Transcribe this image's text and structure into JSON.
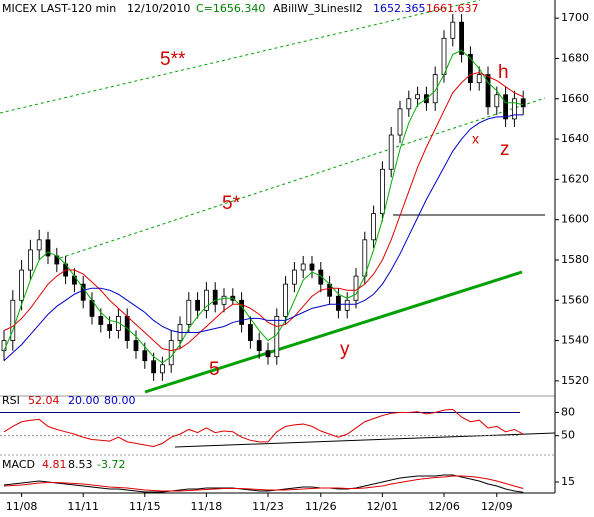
{
  "chart_data": [
    {
      "type": "candlestick",
      "header": [
        {
          "text": "MICEX LAST-120 min",
          "color": "#000000"
        },
        {
          "text": "12/10/2010",
          "color": "#000000"
        },
        {
          "text": "C=1656.340",
          "color": "#008000"
        },
        {
          "text": "ABillW_3LinesII2",
          "color": "#000000"
        },
        {
          "text": "1652.365",
          "color": "#0000c0"
        },
        {
          "text": "1661.637",
          "color": "#d00000"
        }
      ],
      "annotations": [
        {
          "text": "5**",
          "color": "#d00000"
        },
        {
          "text": "5*",
          "color": "#d00000"
        },
        {
          "text": "h",
          "color": "#d00000"
        },
        {
          "text": "x",
          "color": "#d00000"
        },
        {
          "text": "z",
          "color": "#d00000"
        },
        {
          "text": "y",
          "color": "#d00000"
        },
        {
          "text": "5",
          "color": "#d00000"
        }
      ],
      "categories": [
        null,
        null,
        "11/08",
        null,
        null,
        null,
        null,
        null,
        null,
        "11/11",
        null,
        null,
        null,
        null,
        null,
        null,
        "11/15",
        null,
        null,
        null,
        null,
        null,
        null,
        "11/18",
        null,
        null,
        null,
        null,
        null,
        null,
        "11/23",
        null,
        null,
        null,
        null,
        null,
        "11/26",
        null,
        null,
        null,
        null,
        null,
        null,
        "12/01",
        null,
        null,
        null,
        null,
        null,
        null,
        "12/06",
        null,
        null,
        null,
        null,
        null,
        "12/09",
        null,
        null,
        null
      ],
      "open": [
        1535,
        1540,
        1560,
        1575,
        1585,
        1590,
        1582,
        1578,
        1572,
        1568,
        1560,
        1552,
        1548,
        1545,
        1552,
        1540,
        1535,
        1530,
        1524,
        1528,
        1540,
        1548,
        1560,
        1555,
        1565,
        1558,
        1562,
        1560,
        1548,
        1540,
        1535,
        1532,
        1552,
        1568,
        1575,
        1578,
        1575,
        1568,
        1562,
        1555,
        1560,
        1572,
        1590,
        1603,
        1625,
        1642,
        1655,
        1660,
        1662,
        1658,
        1672,
        1690,
        1698,
        1682,
        1668,
        1672,
        1656,
        1662,
        1650,
        1660
      ],
      "high": [
        1545,
        1565,
        1580,
        1590,
        1595,
        1594,
        1586,
        1582,
        1576,
        1572,
        1564,
        1556,
        1552,
        1556,
        1556,
        1545,
        1539,
        1534,
        1532,
        1545,
        1552,
        1564,
        1564,
        1569,
        1569,
        1566,
        1566,
        1564,
        1552,
        1544,
        1539,
        1556,
        1572,
        1579,
        1582,
        1582,
        1579,
        1572,
        1566,
        1564,
        1576,
        1594,
        1607,
        1629,
        1646,
        1659,
        1664,
        1666,
        1666,
        1676,
        1694,
        1702,
        1702,
        1686,
        1676,
        1676,
        1666,
        1666,
        1664,
        1664
      ],
      "low": [
        1530,
        1535,
        1555,
        1570,
        1580,
        1578,
        1574,
        1568,
        1564,
        1556,
        1548,
        1544,
        1541,
        1541,
        1536,
        1531,
        1526,
        1520,
        1520,
        1524,
        1536,
        1544,
        1551,
        1551,
        1554,
        1554,
        1558,
        1544,
        1536,
        1531,
        1528,
        1528,
        1548,
        1564,
        1571,
        1571,
        1564,
        1558,
        1551,
        1551,
        1556,
        1568,
        1586,
        1599,
        1621,
        1638,
        1651,
        1656,
        1654,
        1654,
        1668,
        1686,
        1678,
        1664,
        1664,
        1652,
        1652,
        1646,
        1646,
        1652
      ],
      "close": [
        1540,
        1560,
        1575,
        1585,
        1590,
        1582,
        1578,
        1572,
        1568,
        1560,
        1552,
        1548,
        1545,
        1552,
        1540,
        1535,
        1530,
        1524,
        1528,
        1540,
        1548,
        1560,
        1555,
        1565,
        1558,
        1562,
        1560,
        1548,
        1540,
        1535,
        1532,
        1552,
        1568,
        1575,
        1578,
        1575,
        1568,
        1562,
        1555,
        1560,
        1572,
        1590,
        1603,
        1625,
        1642,
        1655,
        1660,
        1662,
        1658,
        1672,
        1690,
        1698,
        1682,
        1668,
        1672,
        1656,
        1662,
        1650,
        1660,
        1656
      ],
      "series": [
        {
          "color": "#00b000",
          "values": [
            1535,
            1545,
            1558,
            1570,
            1580,
            1584,
            1582,
            1578,
            1572,
            1566,
            1560,
            1554,
            1550,
            1549,
            1546,
            1542,
            1537,
            1532,
            1529,
            1532,
            1538,
            1546,
            1552,
            1557,
            1560,
            1561,
            1561,
            1557,
            1551,
            1545,
            1540,
            1543,
            1550,
            1560,
            1570,
            1574,
            1572,
            1568,
            1563,
            1561,
            1563,
            1572,
            1585,
            1600,
            1618,
            1635,
            1648,
            1657,
            1660,
            1664,
            1672,
            1682,
            1684,
            1680,
            1675,
            1668,
            1664,
            1658,
            1658,
            1657
          ]
        },
        {
          "color": "#e00000",
          "values": [
            1545,
            1547,
            1551,
            1556,
            1562,
            1568,
            1572,
            1575,
            1575,
            1573,
            1569,
            1565,
            1560,
            1556,
            1552,
            1548,
            1544,
            1540,
            1536,
            1535,
            1536,
            1539,
            1543,
            1547,
            1551,
            1555,
            1558,
            1558,
            1556,
            1553,
            1549,
            1547,
            1548,
            1552,
            1557,
            1562,
            1565,
            1566,
            1566,
            1565,
            1565,
            1568,
            1573,
            1580,
            1590,
            1602,
            1614,
            1626,
            1636,
            1645,
            1654,
            1663,
            1668,
            1672,
            1673,
            1671,
            1669,
            1666,
            1663,
            1661
          ]
        },
        {
          "color": "#0000cc",
          "values": [
            1530,
            1534,
            1538,
            1543,
            1548,
            1553,
            1557,
            1560,
            1563,
            1565,
            1566,
            1566,
            1565,
            1563,
            1560,
            1557,
            1554,
            1550,
            1547,
            1545,
            1544,
            1544,
            1544,
            1545,
            1546,
            1547,
            1549,
            1550,
            1551,
            1551,
            1550,
            1550,
            1550,
            1552,
            1554,
            1556,
            1557,
            1558,
            1558,
            1558,
            1558,
            1560,
            1563,
            1568,
            1575,
            1583,
            1592,
            1601,
            1610,
            1618,
            1626,
            1634,
            1640,
            1645,
            1648,
            1650,
            1651,
            1651,
            1652,
            1652
          ]
        }
      ],
      "ylim": [
        1513,
        1709
      ],
      "yticks": [
        1520,
        1540,
        1560,
        1580,
        1600,
        1620,
        1640,
        1660,
        1680,
        1700
      ]
    },
    {
      "type": "line",
      "header": [
        {
          "text": "RSI",
          "color": "#000000"
        },
        {
          "text": "52.04",
          "color": "#d00000"
        },
        {
          "text": "20.00",
          "color": "#0000c0"
        },
        {
          "text": "80.00",
          "color": "#0000c0"
        }
      ],
      "series": [
        {
          "color": "#e00000",
          "values": [
            55,
            62,
            68,
            70,
            71,
            62,
            58,
            55,
            52,
            48,
            45,
            44,
            43,
            48,
            42,
            40,
            38,
            36,
            40,
            48,
            52,
            58,
            54,
            60,
            54,
            56,
            55,
            48,
            44,
            42,
            42,
            55,
            62,
            64,
            65,
            62,
            56,
            52,
            48,
            52,
            60,
            68,
            72,
            76,
            79,
            80,
            80,
            81,
            78,
            80,
            83,
            84,
            74,
            68,
            70,
            60,
            62,
            55,
            58,
            52
          ]
        }
      ],
      "ylim": [
        25,
        100
      ],
      "yticks": [
        50,
        80
      ]
    },
    {
      "type": "line",
      "header": [
        {
          "text": "MACD",
          "color": "#000000"
        },
        {
          "text": "4.81",
          "color": "#d00000"
        },
        {
          "text": "8.53",
          "color": "#000000"
        },
        {
          "text": "-3.72",
          "color": "#008000"
        }
      ],
      "series": [
        {
          "color": "#000000",
          "values": [
            12,
            13,
            14,
            15,
            16,
            15,
            14,
            13,
            12,
            11,
            10,
            9,
            8,
            8,
            7,
            6,
            5,
            5,
            5,
            6,
            7,
            8,
            8,
            9,
            9,
            9,
            9,
            8,
            7,
            6,
            6,
            7,
            8,
            9,
            10,
            10,
            9,
            9,
            8,
            8,
            9,
            11,
            13,
            15,
            17,
            19,
            20,
            21,
            21,
            21,
            22,
            22,
            20,
            18,
            16,
            13,
            11,
            8,
            6,
            4.81
          ]
        },
        {
          "color": "#e00000",
          "values": [
            11,
            11.5,
            12,
            13,
            14,
            14.5,
            14.5,
            14,
            13.5,
            13,
            12,
            11,
            10,
            9.5,
            9,
            8,
            7,
            6.5,
            6,
            6,
            6,
            6.5,
            7,
            7.5,
            8,
            8.5,
            8.5,
            8.5,
            8,
            7.5,
            7,
            7,
            7,
            7.5,
            8,
            8.5,
            9,
            9,
            9,
            8.5,
            8.5,
            9,
            10,
            11,
            13,
            14.5,
            16,
            17.5,
            18.5,
            19.5,
            20,
            21,
            21,
            20.5,
            19.5,
            18,
            16,
            13.5,
            11,
            8.53
          ]
        }
      ],
      "ylim": [
        4,
        42
      ],
      "yticks": [
        15
      ]
    }
  ]
}
